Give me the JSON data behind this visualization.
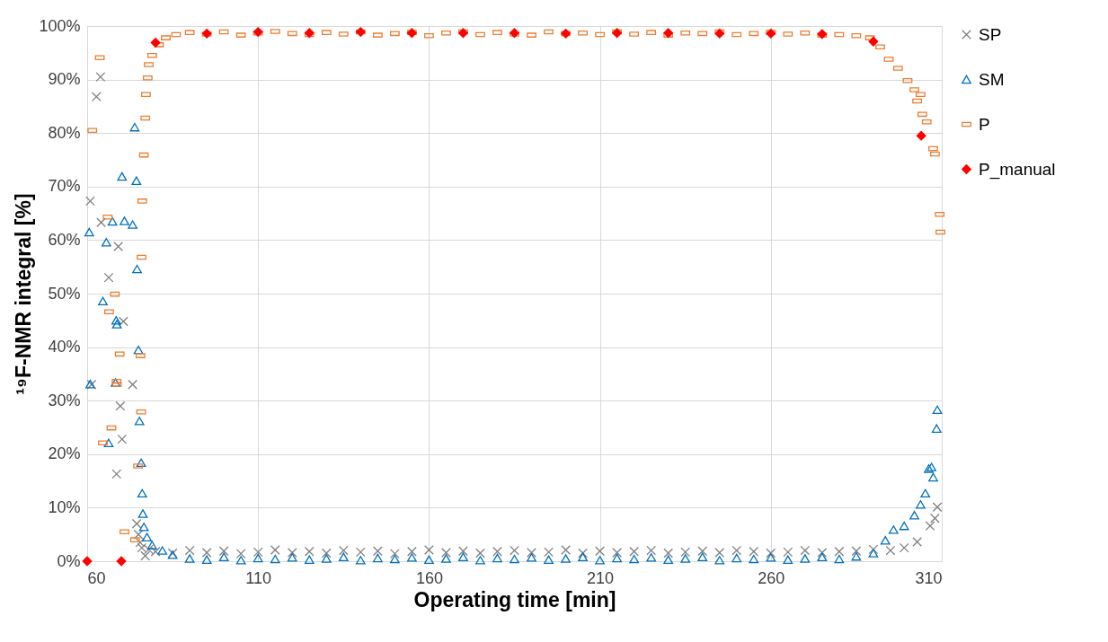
{
  "chart_data": {
    "type": "scatter",
    "xlabel": "Operating time [min]",
    "ylabel": "¹⁹F-NMR integral [%]",
    "xlim": [
      60,
      310
    ],
    "xticks": [
      60,
      110,
      160,
      210,
      260,
      310
    ],
    "ylim": [
      0,
      100
    ],
    "yticks": [
      {
        "value": 0,
        "label": "0%"
      },
      {
        "value": 10,
        "label": "10%"
      },
      {
        "value": 20,
        "label": "20%"
      },
      {
        "value": 30,
        "label": "30%"
      },
      {
        "value": 40,
        "label": "40%"
      },
      {
        "value": 50,
        "label": "50%"
      },
      {
        "value": 60,
        "label": "60%"
      },
      {
        "value": 70,
        "label": "70%"
      },
      {
        "value": 80,
        "label": "80%"
      },
      {
        "value": 90,
        "label": "90%"
      },
      {
        "value": 100,
        "label": "100%"
      }
    ],
    "grid": true,
    "legend": "right",
    "series": [
      {
        "name": "SP",
        "color": "#7f7f7f",
        "marker": "cross",
        "x": [
          60.9,
          61.3,
          62.7,
          63.9,
          64.1,
          66.3,
          68.6,
          69.1,
          69.7,
          70.2,
          70.6,
          73.3,
          74.5,
          75.0,
          75.5,
          76.0,
          77.0,
          78.0,
          80,
          85,
          90,
          95,
          100,
          105,
          110,
          115,
          120,
          125,
          130,
          135,
          140,
          145,
          150,
          155,
          160,
          165,
          170,
          175,
          180,
          185,
          190,
          195,
          200,
          205,
          210,
          215,
          220,
          225,
          230,
          235,
          240,
          245,
          250,
          255,
          260,
          265,
          270,
          275,
          280,
          285,
          290,
          295,
          299.0,
          302.8,
          306.6,
          308.0,
          308.7
        ],
        "values": [
          67.3,
          33.0,
          86.8,
          90.5,
          63.3,
          53.0,
          16.3,
          58.8,
          29.0,
          22.8,
          44.8,
          33.0,
          7.0,
          5.0,
          3.5,
          2.5,
          1.0,
          2.2,
          1.8,
          1.5,
          2.0,
          1.6,
          1.9,
          1.4,
          1.7,
          2.1,
          1.6,
          1.8,
          1.5,
          2.0,
          1.7,
          1.9,
          1.4,
          1.8,
          2.1,
          1.6,
          1.9,
          1.5,
          1.8,
          2.0,
          1.6,
          1.7,
          2.1,
          1.5,
          1.9,
          1.6,
          1.8,
          2.0,
          1.5,
          1.7,
          1.9,
          1.6,
          2.0,
          1.8,
          1.5,
          1.7,
          2.0,
          1.6,
          1.8,
          1.9,
          2.2,
          2.0,
          2.5,
          3.6,
          6.6,
          8.0,
          10.1
        ]
      },
      {
        "name": "SM",
        "color": "#0070c0",
        "marker": "triangle",
        "x": [
          60.6,
          60.9,
          64.6,
          65.6,
          66.3,
          67.4,
          68.3,
          68.5,
          68.7,
          70.2,
          70.9,
          73.3,
          73.9,
          74.4,
          74.6,
          75.0,
          75.3,
          75.8,
          76.1,
          76.3,
          76.6,
          77.5,
          79,
          82,
          85,
          90,
          95,
          100,
          105,
          110,
          115,
          120,
          125,
          130,
          135,
          140,
          145,
          150,
          155,
          160,
          165,
          170,
          175,
          180,
          185,
          190,
          195,
          200,
          205,
          210,
          215,
          220,
          225,
          230,
          235,
          240,
          245,
          250,
          255,
          260,
          265,
          270,
          275,
          280,
          285,
          290,
          293.5,
          295.9,
          299.0,
          302.0,
          303.8,
          305.2,
          306.2,
          307.0,
          307.5,
          308.5,
          308.7
        ],
        "values": [
          61.5,
          33.1,
          48.6,
          59.6,
          22.1,
          63.5,
          33.4,
          45.0,
          44.3,
          71.9,
          63.6,
          62.9,
          81.1,
          71.1,
          54.6,
          39.5,
          26.2,
          18.4,
          12.7,
          8.9,
          6.4,
          4.5,
          3.0,
          2.0,
          1.2,
          0.5,
          0.3,
          0.8,
          0.2,
          0.6,
          0.4,
          0.7,
          0.3,
          0.5,
          0.8,
          0.2,
          0.6,
          0.4,
          0.7,
          0.3,
          0.5,
          0.8,
          0.2,
          0.6,
          0.4,
          0.7,
          0.3,
          0.5,
          0.8,
          0.2,
          0.6,
          0.4,
          0.7,
          0.3,
          0.5,
          0.8,
          0.2,
          0.6,
          0.4,
          0.7,
          0.3,
          0.5,
          0.8,
          0.4,
          0.9,
          1.5,
          3.9,
          5.9,
          6.6,
          8.6,
          10.6,
          12.7,
          17.3,
          17.6,
          15.7,
          24.8,
          28.3
        ]
      },
      {
        "name": "P",
        "color": "#ed7d31",
        "marker": "square",
        "x": [
          61.5,
          63.7,
          64.6,
          66.0,
          66.4,
          67.1,
          68.1,
          68.6,
          68.7,
          69.5,
          70.9,
          74.0,
          74.9,
          75.6,
          75.8,
          75.9,
          76.1,
          76.6,
          77.0,
          77.2,
          77.7,
          78.0,
          79,
          81,
          83,
          86,
          90,
          95,
          100,
          105,
          110,
          115,
          120,
          125,
          130,
          135,
          140,
          145,
          150,
          155,
          160,
          165,
          170,
          175,
          180,
          185,
          190,
          195,
          200,
          205,
          210,
          215,
          220,
          225,
          230,
          235,
          240,
          245,
          250,
          255,
          260,
          265,
          270,
          275,
          280,
          285,
          289,
          292.0,
          294.5,
          297.2,
          300.0,
          302.0,
          302.8,
          303.8,
          304.3,
          305.6,
          307.5,
          308.0,
          309.4,
          309.6
        ],
        "values": [
          80.5,
          94.1,
          22.1,
          64.3,
          46.6,
          24.9,
          49.9,
          33.6,
          33.0,
          38.7,
          5.5,
          4.0,
          17.8,
          38.4,
          27.9,
          56.8,
          67.3,
          75.9,
          82.8,
          87.2,
          90.3,
          92.8,
          94.5,
          96.5,
          97.8,
          98.4,
          98.8,
          98.5,
          98.9,
          98.3,
          98.7,
          99.0,
          98.6,
          98.4,
          98.8,
          98.5,
          98.9,
          98.3,
          98.6,
          98.8,
          98.2,
          98.7,
          98.9,
          98.4,
          98.8,
          98.5,
          98.3,
          98.9,
          98.6,
          98.7,
          98.4,
          98.9,
          98.5,
          98.8,
          98.3,
          98.7,
          98.6,
          98.9,
          98.4,
          98.6,
          98.8,
          98.5,
          98.7,
          98.3,
          98.4,
          98.2,
          97.8,
          96.1,
          93.8,
          92.1,
          89.8,
          88.1,
          86.0,
          87.2,
          83.5,
          82.1,
          77.1,
          76.1,
          64.8,
          61.5
        ]
      },
      {
        "name": "P_manual",
        "color": "#ff0000",
        "marker": "diamond",
        "x": [
          60,
          70,
          80,
          95,
          110,
          125,
          140,
          155,
          170,
          185,
          200,
          215,
          230,
          245,
          260,
          275,
          290,
          304
        ],
        "values": [
          0,
          0,
          96.9,
          98.6,
          98.9,
          98.7,
          98.9,
          98.7,
          98.7,
          98.7,
          98.6,
          98.7,
          98.7,
          98.6,
          98.6,
          98.5,
          97.1,
          79.5
        ]
      }
    ]
  }
}
